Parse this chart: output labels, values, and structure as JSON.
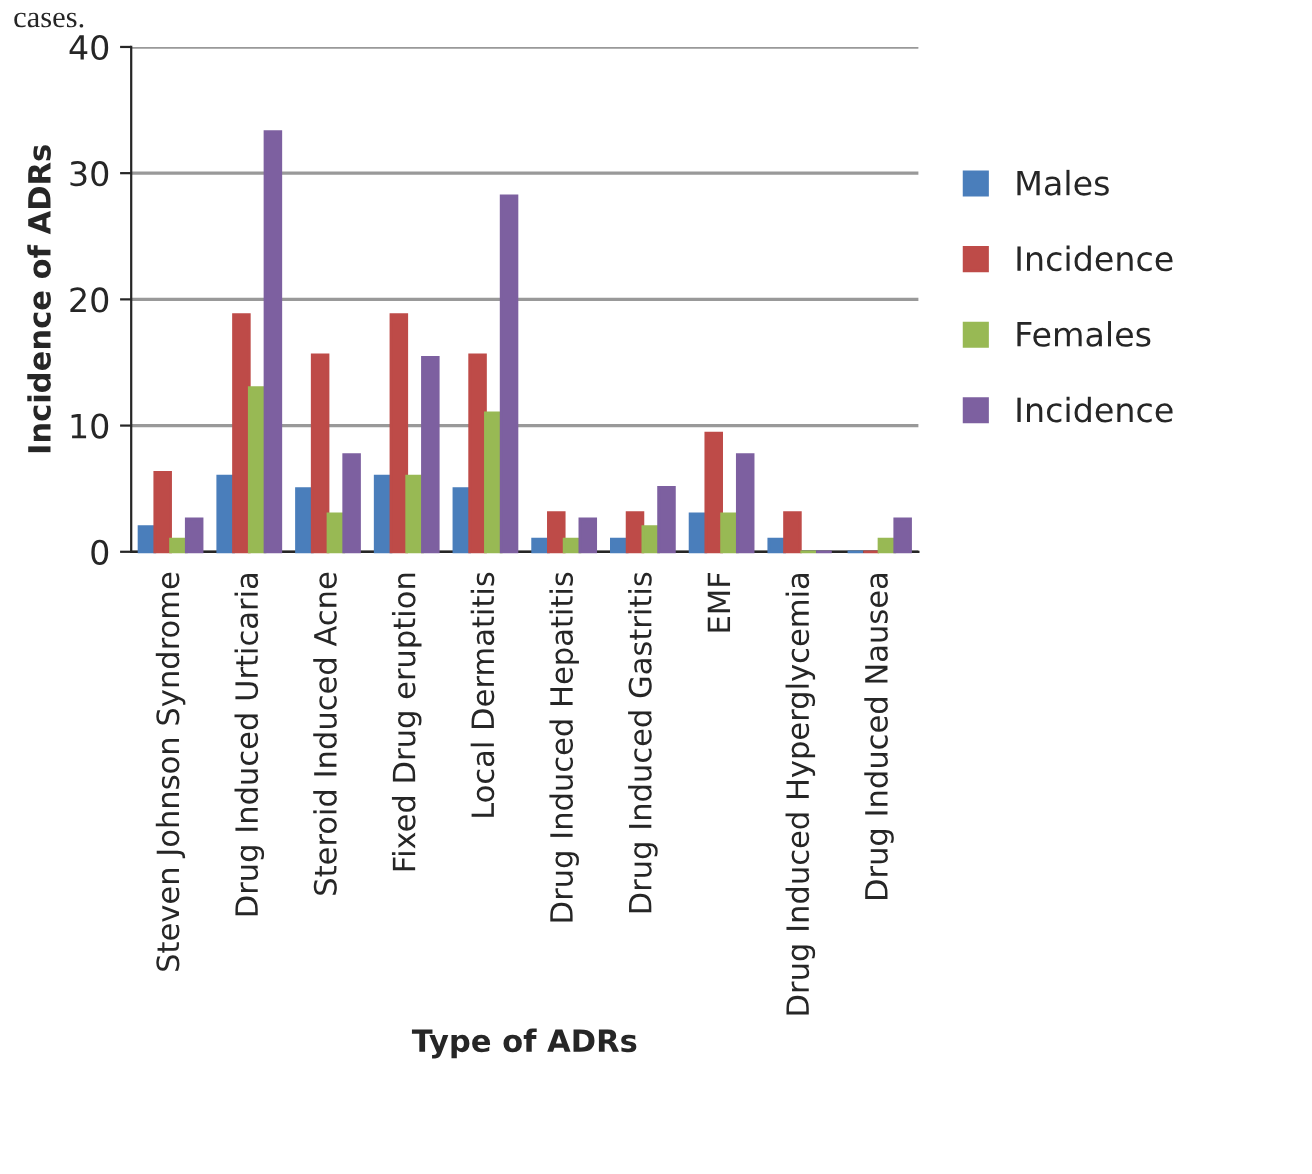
{
  "chart_data": {
    "type": "bar",
    "xlabel": "Type of ADRs",
    "ylabel": "Incidence of ADRs",
    "categories": [
      "Steven Johnson Syndrome",
      "Drug Induced Urticaria",
      "Steroid Induced Acne",
      "Fixed Drug eruption",
      "Local Dermatitis",
      "Drug Induced Hepatitis",
      "Drug Induced Gastritis",
      "EMF",
      "Drug Induced Hyperglycemia",
      "Drug Induced Nausea"
    ],
    "series": [
      {
        "name": "Males",
        "color": "#4a7ebb",
        "values": [
          2,
          6,
          5,
          6,
          5,
          1,
          1,
          3,
          1,
          0
        ]
      },
      {
        "name": "Incidence",
        "color": "#be4b48",
        "values": [
          6.3,
          18.8,
          15.6,
          18.8,
          15.6,
          3.1,
          3.1,
          9.4,
          3.1,
          0
        ]
      },
      {
        "name": "Females",
        "color": "#98b954",
        "values": [
          1,
          13,
          3,
          6,
          11,
          1,
          2,
          3,
          0,
          1
        ]
      },
      {
        "name": "Incidence",
        "color": "#7d60a0",
        "values": [
          2.6,
          33.3,
          7.7,
          15.4,
          28.2,
          2.6,
          5.1,
          7.7,
          0,
          2.6
        ]
      }
    ],
    "ylim": [
      0,
      40
    ],
    "yticks": [
      0,
      10,
      20,
      30,
      40
    ],
    "grid": "y",
    "legend": "right",
    "annotations": [
      "cases."
    ]
  }
}
